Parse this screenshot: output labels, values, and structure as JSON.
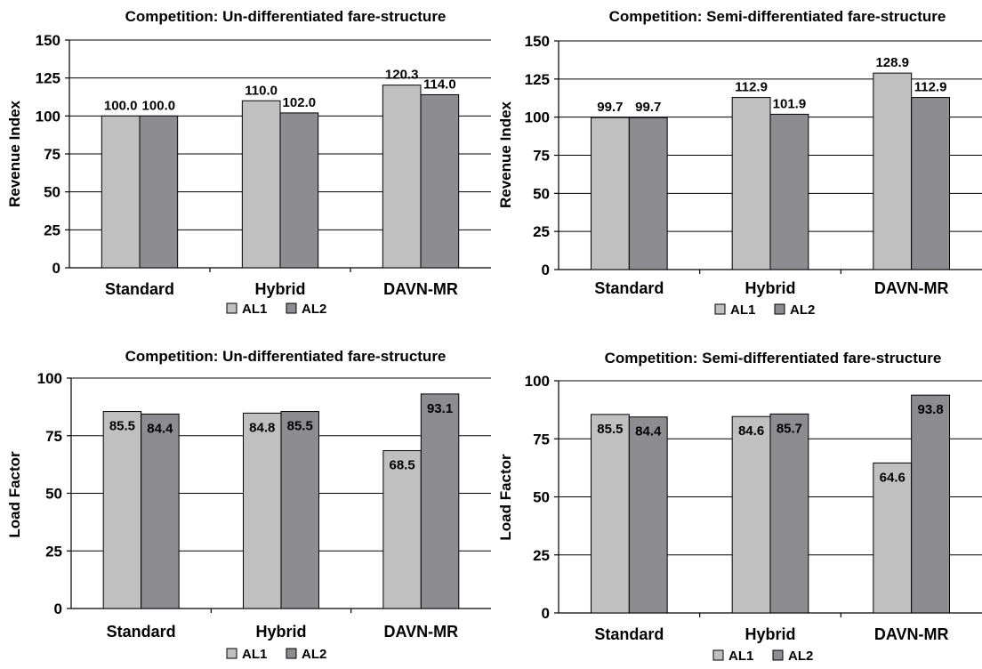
{
  "chart_data": [
    {
      "type": "bar",
      "title": "Competition: Un-differentiated fare-structure",
      "ylabel": "Revenue Index",
      "categories": [
        "Standard",
        "Hybrid",
        "DAVN-MR"
      ],
      "series": [
        {
          "name": "AL1",
          "values": [
            100.0,
            110.0,
            120.3
          ],
          "labels": [
            "100.0",
            "110.0",
            "120.3"
          ],
          "color": "#c0c0c0"
        },
        {
          "name": "AL2",
          "values": [
            100.0,
            102.0,
            114.0
          ],
          "labels": [
            "100.0",
            "102.0",
            "114.0"
          ],
          "color": "#8c8c91"
        }
      ],
      "ylim": [
        0,
        150
      ],
      "yticks": [
        "0",
        "25",
        "50",
        "75",
        "100",
        "125",
        "150"
      ],
      "label_position": "above",
      "grid": true,
      "legend": "bottom"
    },
    {
      "type": "bar",
      "title": "Competition: Semi-differentiated  fare-structure",
      "ylabel": "Revenue Index",
      "categories": [
        "Standard",
        "Hybrid",
        "DAVN-MR"
      ],
      "series": [
        {
          "name": "AL1",
          "values": [
            99.7,
            112.9,
            128.9
          ],
          "labels": [
            "99.7",
            "112.9",
            "128.9"
          ],
          "color": "#c0c0c0"
        },
        {
          "name": "AL2",
          "values": [
            99.7,
            101.9,
            112.9
          ],
          "labels": [
            "99.7",
            "101.9",
            "112.9"
          ],
          "color": "#8c8c91"
        }
      ],
      "ylim": [
        0,
        150
      ],
      "yticks": [
        "0",
        "25",
        "50",
        "75",
        "100",
        "125",
        "150"
      ],
      "label_position": "above",
      "grid": true,
      "legend": "bottom"
    },
    {
      "type": "bar",
      "title": "Competition: Un-differentiated fare-structure",
      "ylabel": "Load Factor",
      "categories": [
        "Standard",
        "Hybrid",
        "DAVN-MR"
      ],
      "series": [
        {
          "name": "AL1",
          "values": [
            85.5,
            84.8,
            68.5
          ],
          "labels": [
            "85.5",
            "84.8",
            "68.5"
          ],
          "color": "#c0c0c0"
        },
        {
          "name": "AL2",
          "values": [
            84.4,
            85.5,
            93.1
          ],
          "labels": [
            "84.4",
            "85.5",
            "93.1"
          ],
          "color": "#8c8c91"
        }
      ],
      "ylim": [
        0,
        100
      ],
      "yticks": [
        "0",
        "25",
        "50",
        "75",
        "100"
      ],
      "label_position": "inside",
      "grid": true,
      "legend": "bottom"
    },
    {
      "type": "bar",
      "title": "Competition: Semi-differentiated fare-structure",
      "ylabel": "Load Factor",
      "categories": [
        "Standard",
        "Hybrid",
        "DAVN-MR"
      ],
      "series": [
        {
          "name": "AL1",
          "values": [
            85.5,
            84.6,
            64.6
          ],
          "labels": [
            "85.5",
            "84.6",
            "64.6"
          ],
          "color": "#c0c0c0"
        },
        {
          "name": "AL2",
          "values": [
            84.4,
            85.7,
            93.8
          ],
          "labels": [
            "84.4",
            "85.7",
            "93.8"
          ],
          "color": "#8c8c91"
        }
      ],
      "ylim": [
        0,
        100
      ],
      "yticks": [
        "0",
        "25",
        "50",
        "75",
        "100"
      ],
      "label_position": "inside",
      "grid": true,
      "legend": "bottom"
    }
  ]
}
